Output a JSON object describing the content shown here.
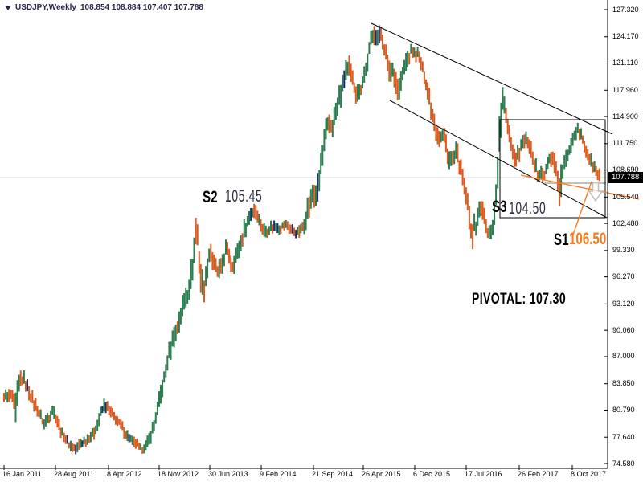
{
  "header": {
    "symbol_period": "USDJPY,Weekly",
    "ohlc": "108.854 108.884 107.407 107.788"
  },
  "price_tag": "107.788",
  "annotations": {
    "s2_label": "S2",
    "s2_value": "105.45",
    "s3_label": "S3",
    "s3_value": "104.50",
    "s1_label": "S1",
    "s1_value": "106.50",
    "pivotal": "PIVOTAL: 107.30"
  },
  "colors": {
    "bull_bar": "#2e7d51",
    "bear_bar": "#dd5a1f",
    "doji_bar": "#1c2e6b",
    "accent_orange": "#fb7a1e",
    "trend_black": "#000000",
    "bid_line_gray": "#d6d6d6",
    "level_gray": "#c0c0c0",
    "tag_bg": "#000000",
    "info_text": "#26264a"
  },
  "axes": {
    "price_labels": [
      "127.320",
      "124.170",
      "121.110",
      "117.960",
      "114.900",
      "111.750",
      "108.690",
      "105.540",
      "102.480",
      "99.330",
      "96.270",
      "93.120",
      "90.060",
      "87.000",
      "83.850",
      "80.790",
      "77.640",
      "74.580"
    ],
    "date_labels": [
      [
        5,
        "16 Jan 2011"
      ],
      [
        69,
        "28 Aug 2011"
      ],
      [
        135,
        "8 Apr 2012"
      ],
      [
        198,
        "18 Nov 2012"
      ],
      [
        261,
        "30 Jun 2013"
      ],
      [
        325,
        "9 Feb 2014"
      ],
      [
        390,
        "21 Sep 2014"
      ],
      [
        452,
        "26 Apr 2015"
      ],
      [
        516,
        "6 Dec 2015"
      ],
      [
        580,
        "17 Jul 2016"
      ],
      [
        646,
        "26 Feb 2017"
      ],
      [
        712,
        "8 Oct 2017"
      ]
    ]
  },
  "chart_data": {
    "type": "bar",
    "instrument": "USDJPY",
    "timeframe": "Weekly",
    "last": {
      "open": 108.854,
      "high": 108.884,
      "low": 107.407,
      "close": 107.788
    },
    "key_levels": {
      "S1": 106.5,
      "S2": 105.45,
      "S3": 104.5,
      "PIVOTAL": 107.3,
      "current_bid": 107.788
    },
    "ylim": [
      74.58,
      127.32
    ],
    "y_map": {
      "p_top": 127.32,
      "y_top": 12,
      "p_bot": 74.58,
      "y_bot": 577
    },
    "x_start": 5,
    "x_step": 2.075,
    "x_end": 746,
    "doji_bars": [
      75,
      164,
      188
    ],
    "anchors": [
      [
        5,
        82.5,
        0.9
      ],
      [
        9,
        82.0,
        0.9
      ],
      [
        13,
        82.6,
        0.9
      ],
      [
        17,
        81.6,
        1.1
      ],
      [
        19,
        80.0,
        3.4
      ],
      [
        22,
        82.6,
        1.5
      ],
      [
        25,
        84.2,
        1.3
      ],
      [
        29,
        84.5,
        1.0
      ],
      [
        34,
        83.5,
        0.9
      ],
      [
        39,
        82.2,
        0.9
      ],
      [
        45,
        81.2,
        0.9
      ],
      [
        50,
        80.2,
        0.8
      ],
      [
        55,
        79.2,
        0.8
      ],
      [
        60,
        79.9,
        0.8
      ],
      [
        65,
        80.8,
        0.8
      ],
      [
        70,
        79.9,
        0.8
      ],
      [
        76,
        78.4,
        0.8
      ],
      [
        82,
        77.3,
        0.7
      ],
      [
        88,
        76.6,
        0.7
      ],
      [
        94,
        76.2,
        0.7
      ],
      [
        100,
        76.8,
        0.7
      ],
      [
        106,
        77.2,
        0.7
      ],
      [
        112,
        77.6,
        0.7
      ],
      [
        118,
        78.4,
        0.8
      ],
      [
        124,
        79.9,
        0.8
      ],
      [
        129,
        81.3,
        0.8
      ],
      [
        134,
        81.0,
        0.8
      ],
      [
        139,
        80.4,
        0.8
      ],
      [
        145,
        79.6,
        0.7
      ],
      [
        151,
        78.9,
        0.7
      ],
      [
        157,
        77.9,
        0.7
      ],
      [
        163,
        77.3,
        0.7
      ],
      [
        169,
        76.9,
        0.7
      ],
      [
        175,
        76.3,
        0.7
      ],
      [
        181,
        76.4,
        0.7
      ],
      [
        186,
        77.4,
        0.8
      ],
      [
        191,
        78.9,
        0.9
      ],
      [
        196,
        80.6,
        1.1
      ],
      [
        201,
        82.9,
        1.2
      ],
      [
        206,
        85.1,
        1.3
      ],
      [
        211,
        87.6,
        1.4
      ],
      [
        215,
        89.3,
        1.4
      ],
      [
        219,
        90.0,
        1.4
      ],
      [
        223,
        91.2,
        1.4
      ],
      [
        227,
        92.7,
        1.5
      ],
      [
        231,
        93.9,
        1.5
      ],
      [
        235,
        94.8,
        1.6
      ],
      [
        239,
        97.0,
        1.9
      ],
      [
        242,
        100.2,
        2.1
      ],
      [
        245,
        101.8,
        2.2
      ],
      [
        248,
        98.2,
        2.2
      ],
      [
        251,
        95.6,
        2.0
      ],
      [
        254,
        94.8,
        1.6
      ],
      [
        258,
        97.5,
        1.6
      ],
      [
        261,
        99.4,
        1.4
      ],
      [
        264,
        98.5,
        1.3
      ],
      [
        268,
        97.4,
        1.3
      ],
      [
        272,
        96.7,
        1.3
      ],
      [
        277,
        97.6,
        1.4
      ],
      [
        281,
        99.4,
        1.3
      ],
      [
        285,
        98.8,
        1.2
      ],
      [
        289,
        97.6,
        1.2
      ],
      [
        293,
        98.5,
        1.2
      ],
      [
        297,
        99.5,
        1.1
      ],
      [
        301,
        100.8,
        1.2
      ],
      [
        305,
        102.0,
        1.1
      ],
      [
        309,
        103.0,
        1.0
      ],
      [
        313,
        103.8,
        0.9
      ],
      [
        317,
        104.1,
        0.9
      ],
      [
        321,
        103.2,
        0.9
      ],
      [
        325,
        102.3,
        0.9
      ],
      [
        330,
        101.5,
        0.9
      ],
      [
        335,
        101.9,
        0.8
      ],
      [
        340,
        102.2,
        0.7
      ],
      [
        345,
        102.0,
        0.7
      ],
      [
        350,
        102.1,
        0.7
      ],
      [
        355,
        102.3,
        0.7
      ],
      [
        360,
        102.0,
        0.7
      ],
      [
        365,
        101.7,
        0.8
      ],
      [
        370,
        101.4,
        0.8
      ],
      [
        375,
        101.7,
        0.9
      ],
      [
        380,
        103.0,
        1.3
      ],
      [
        385,
        104.8,
        1.5
      ],
      [
        390,
        106.3,
        1.6
      ],
      [
        394,
        105.3,
        1.8
      ],
      [
        398,
        108.5,
        1.7
      ],
      [
        402,
        111.0,
        1.6
      ],
      [
        406,
        113.2,
        1.5
      ],
      [
        410,
        114.2,
        1.4
      ],
      [
        414,
        113.6,
        1.5
      ],
      [
        418,
        115.3,
        1.5
      ],
      [
        422,
        116.8,
        1.5
      ],
      [
        426,
        118.3,
        1.5
      ],
      [
        430,
        120.0,
        1.4
      ],
      [
        434,
        120.5,
        1.3
      ],
      [
        438,
        119.3,
        1.3
      ],
      [
        443,
        117.8,
        1.3
      ],
      [
        447,
        117.6,
        1.2
      ],
      [
        451,
        119.0,
        1.2
      ],
      [
        455,
        120.2,
        1.2
      ],
      [
        458,
        121.8,
        1.3
      ],
      [
        462,
        123.8,
        1.4
      ],
      [
        466,
        124.6,
        1.2
      ],
      [
        470,
        124.0,
        1.1
      ],
      [
        474,
        124.5,
        1.2
      ],
      [
        478,
        123.0,
        1.2
      ],
      [
        482,
        121.2,
        1.3
      ],
      [
        485,
        119.8,
        1.6
      ],
      [
        489,
        120.5,
        1.2
      ],
      [
        493,
        118.8,
        1.5
      ],
      [
        496,
        117.2,
        1.8
      ],
      [
        500,
        119.2,
        1.4
      ],
      [
        504,
        120.8,
        1.2
      ],
      [
        508,
        121.8,
        1.1
      ],
      [
        512,
        122.5,
        1.0
      ],
      [
        516,
        122.0,
        0.9
      ],
      [
        520,
        122.2,
        0.9
      ],
      [
        524,
        121.0,
        0.9
      ],
      [
        528,
        119.6,
        1.0
      ],
      [
        532,
        118.0,
        1.2
      ],
      [
        536,
        116.3,
        1.4
      ],
      [
        540,
        114.4,
        1.4
      ],
      [
        544,
        112.8,
        1.4
      ],
      [
        548,
        112.4,
        1.2
      ],
      [
        552,
        113.1,
        1.1
      ],
      [
        556,
        111.2,
        1.2
      ],
      [
        560,
        109.5,
        1.2
      ],
      [
        564,
        110.0,
        1.1
      ],
      [
        568,
        110.9,
        1.1
      ],
      [
        572,
        109.2,
        1.2
      ],
      [
        576,
        107.6,
        1.3
      ],
      [
        580,
        105.6,
        1.5
      ],
      [
        584,
        103.0,
        1.7
      ],
      [
        588,
        101.3,
        1.5
      ],
      [
        592,
        102.2,
        1.3
      ],
      [
        596,
        104.0,
        1.3
      ],
      [
        600,
        104.5,
        1.2
      ],
      [
        604,
        102.3,
        1.2
      ],
      [
        608,
        100.9,
        1.2
      ],
      [
        612,
        101.7,
        1.2
      ],
      [
        616,
        104.2,
        1.7
      ],
      [
        619,
        108.6,
        2.2
      ],
      [
        622,
        113.1,
        2.4
      ],
      [
        625,
        116.6,
        1.7
      ],
      [
        629,
        115.1,
        1.4
      ],
      [
        633,
        113.3,
        1.3
      ],
      [
        637,
        111.1,
        1.3
      ],
      [
        641,
        109.9,
        1.2
      ],
      [
        645,
        110.6,
        1.1
      ],
      [
        649,
        111.6,
        1.0
      ],
      [
        653,
        112.3,
        1.0
      ],
      [
        657,
        111.9,
        1.0
      ],
      [
        661,
        110.6,
        1.1
      ],
      [
        665,
        109.1,
        1.1
      ],
      [
        669,
        108.3,
        1.0
      ],
      [
        673,
        108.9,
        0.9
      ],
      [
        677,
        107.9,
        1.0
      ],
      [
        681,
        109.1,
        1.0
      ],
      [
        685,
        110.3,
        1.0
      ],
      [
        689,
        109.6,
        1.1
      ],
      [
        693,
        108.1,
        1.3
      ],
      [
        697,
        106.1,
        2.6
      ],
      [
        701,
        108.9,
        1.3
      ],
      [
        705,
        110.1,
        1.1
      ],
      [
        709,
        111.3,
        1.0
      ],
      [
        713,
        112.6,
        1.0
      ],
      [
        717,
        113.3,
        0.9
      ],
      [
        721,
        112.9,
        0.9
      ],
      [
        725,
        112.3,
        0.9
      ],
      [
        729,
        111.1,
        0.9
      ],
      [
        733,
        110.1,
        0.9
      ],
      [
        737,
        109.3,
        0.9
      ],
      [
        741,
        108.5,
        0.9
      ],
      [
        745,
        107.9,
        0.9
      ]
    ],
    "overlays": {
      "trendlines": [
        {
          "x1": 462,
          "y1": 29,
          "x2": 762,
          "y2": 167
        },
        {
          "x1": 485,
          "y1": 125,
          "x2": 755,
          "y2": 271
        }
      ],
      "rectangle": {
        "x": 622,
        "y": 149,
        "w": 131,
        "h": 122
      },
      "orange_lines": [
        {
          "x1": 648,
          "y1": 218,
          "x2": 795,
          "y2": 248
        },
        {
          "x1": 736,
          "y1": 226,
          "x2": 712,
          "y2": 295
        }
      ],
      "gray_lines": [
        {
          "x1": 0,
          "y1": 221,
          "x2": 756,
          "y2": 221,
          "w": 1,
          "color": "#d6d6d6"
        },
        {
          "x1": 678,
          "y1": 228,
          "x2": 754,
          "y2": 228,
          "w": 2,
          "color": "#c0c0c0"
        }
      ],
      "down_arrow": {
        "cx": 741,
        "top": 227,
        "stem_w": 7,
        "stem_h": 11,
        "head_w": 16,
        "tip": 250
      }
    }
  }
}
